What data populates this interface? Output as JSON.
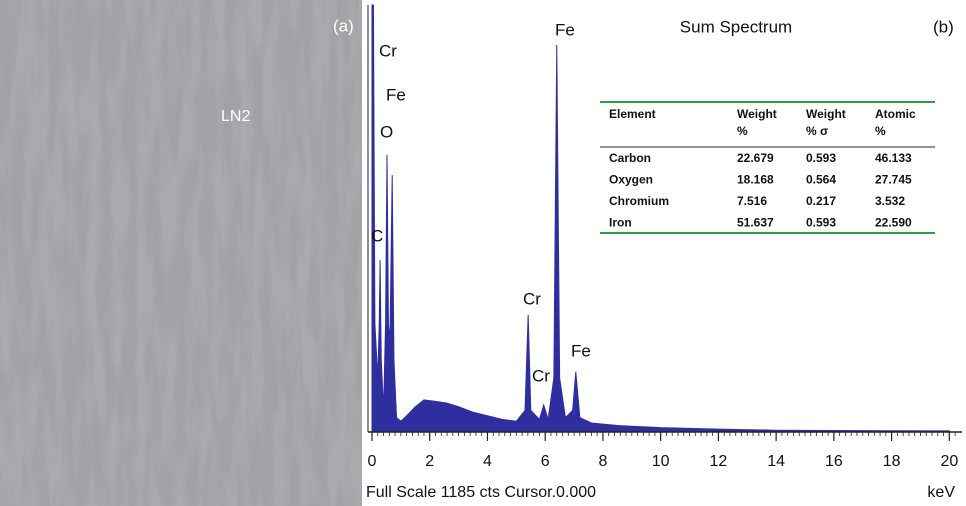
{
  "chart_data": {
    "type": "area",
    "title": "Sum Spectrum",
    "panel_labels": [
      "(a)",
      "(b)"
    ],
    "image_label": "LN2",
    "x_label": "keV",
    "footer": "Full Scale 1185 cts Cursor.0.000",
    "color": "#2e2e9e",
    "xlim": [
      0,
      20.3
    ],
    "ylim": [
      0,
      1185
    ],
    "xticks": [
      0,
      2,
      4,
      6,
      8,
      10,
      12,
      14,
      16,
      18,
      20
    ],
    "annotations": [
      "Cr",
      "Fe",
      "O",
      "C",
      "Cr",
      "Cr",
      "Fe",
      "Fe"
    ],
    "x": [
      0,
      0.05,
      0.1,
      0.2,
      0.25,
      0.28,
      0.32,
      0.4,
      0.47,
      0.52,
      0.57,
      0.62,
      0.7,
      0.76,
      0.85,
      1.0,
      1.2,
      1.5,
      1.8,
      2.2,
      2.6,
      3.0,
      3.5,
      4.0,
      4.5,
      5.0,
      5.3,
      5.41,
      5.5,
      5.8,
      5.95,
      6.1,
      6.3,
      6.4,
      6.5,
      6.7,
      6.95,
      7.06,
      7.2,
      7.6,
      8.5,
      10,
      12,
      14,
      16,
      20
    ],
    "values": [
      1185,
      1185,
      300,
      150,
      300,
      477,
      200,
      60,
      300,
      769,
      300,
      250,
      713,
      200,
      40,
      30,
      45,
      70,
      89,
      85,
      80,
      70,
      55,
      45,
      35,
      30,
      60,
      325,
      60,
      35,
      75,
      35,
      150,
      1074,
      150,
      40,
      60,
      167,
      40,
      25,
      18,
      12,
      8,
      5,
      4,
      3
    ],
    "table": {
      "header": [
        "Element",
        "Weight",
        "Weight",
        "Atomic"
      ],
      "subheader": [
        "%",
        "% σ",
        "%"
      ],
      "rows": [
        [
          "Carbon",
          "22.679",
          "0.593",
          "46.133"
        ],
        [
          "Oxygen",
          "18.168",
          "0.564",
          "27.745"
        ],
        [
          "Chromium",
          "7.516",
          "0.217",
          "3.532"
        ],
        [
          "Iron",
          "51.637",
          "0.593",
          "22.590"
        ]
      ]
    }
  }
}
